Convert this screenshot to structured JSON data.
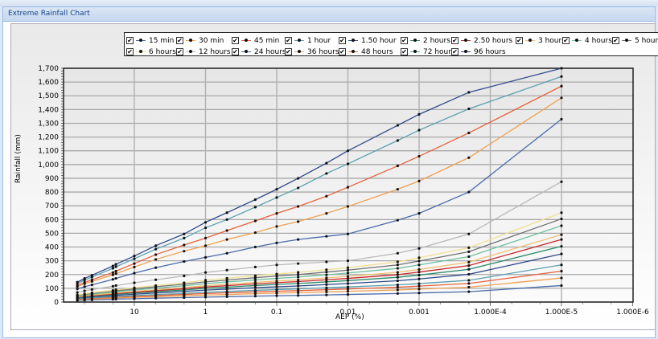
{
  "window": {
    "title": "Extreme Rainfall Chart"
  },
  "legend": {
    "rows": [
      [
        {
          "label": "15 min",
          "color": "#4a6aa8",
          "checked": true
        },
        {
          "label": "30 min",
          "color": "#f0a050",
          "checked": true
        },
        {
          "label": "45 min",
          "color": "#e8603a",
          "checked": true
        },
        {
          "label": "1 hour",
          "color": "#5aa0b0",
          "checked": true
        },
        {
          "label": "1.50 hour",
          "color": "#2e4a8a",
          "checked": true
        },
        {
          "label": "2 hours",
          "color": "#2a8a6a",
          "checked": true
        },
        {
          "label": "2.50 hours",
          "color": "#c8282a",
          "checked": true
        },
        {
          "label": "3 hours",
          "color": "#f0c070",
          "checked": true
        },
        {
          "label": "4 hours",
          "color": "#70c0a0",
          "checked": true
        },
        {
          "label": "5 hours",
          "color": "#707070",
          "checked": true
        }
      ],
      [
        {
          "label": "6 hours",
          "color": "#f0e090",
          "checked": true
        },
        {
          "label": "12 hours",
          "color": "#b8b8b8",
          "checked": true
        },
        {
          "label": "24 hours",
          "color": "#4a6aa8",
          "checked": true
        },
        {
          "label": "36 hours",
          "color": "#f0a050",
          "checked": true
        },
        {
          "label": "48 hours",
          "color": "#e8603a",
          "checked": true
        },
        {
          "label": "72 hours",
          "color": "#5aa0b0",
          "checked": true
        },
        {
          "label": "96 hours",
          "color": "#2e4a8a",
          "checked": true
        }
      ]
    ]
  },
  "chart_data": {
    "type": "line",
    "title": "Extreme Rainfall Chart",
    "xlabel": "AEP (%)",
    "ylabel": "Rainfall (mm)",
    "xscale": "log-reversed",
    "x_ticks": [
      "10",
      "1",
      "0.1",
      "0.01",
      "0.001",
      "1.000E-4",
      "1.000E-5",
      "1.000E-6"
    ],
    "y_ticks": [
      "0",
      "100",
      "200",
      "300",
      "400",
      "500",
      "600",
      "700",
      "800",
      "900",
      "1,000",
      "1,100",
      "1,200",
      "1,300",
      "1,400",
      "1,500",
      "1,600",
      "1,700"
    ],
    "ylim": [
      0,
      1700
    ],
    "grid": true,
    "legend_position": "top",
    "x": [
      63.2,
      50,
      39.35,
      20,
      18.13,
      10,
      5,
      2,
      1,
      0.5,
      0.2,
      0.1,
      0.05,
      0.02,
      0.01,
      0.002,
      0.001,
      0.0002,
      1e-05
    ],
    "series": [
      {
        "name": "15 min",
        "values": [
          12,
          14,
          16,
          20,
          21,
          24,
          28,
          32,
          36,
          39,
          43,
          46,
          48,
          52,
          55,
          62,
          66,
          75,
          120
        ]
      },
      {
        "name": "30 min",
        "values": [
          17,
          20,
          22,
          28,
          29,
          34,
          39,
          45,
          51,
          55,
          61,
          65,
          68,
          74,
          78,
          88,
          94,
          108,
          175
        ]
      },
      {
        "name": "45 min",
        "values": [
          21,
          24,
          27,
          34,
          35,
          41,
          47,
          55,
          62,
          67,
          74,
          79,
          83,
          90,
          95,
          108,
          116,
          135,
          225
        ]
      },
      {
        "name": "1 hour",
        "values": [
          24,
          28,
          31,
          39,
          40,
          47,
          54,
          63,
          71,
          77,
          85,
          91,
          95,
          104,
          110,
          125,
          134,
          158,
          270
        ]
      },
      {
        "name": "1.50 hour",
        "values": [
          29,
          34,
          38,
          47,
          49,
          57,
          66,
          77,
          87,
          94,
          104,
          111,
          117,
          127,
          135,
          155,
          168,
          202,
          350
        ]
      },
      {
        "name": "2 hours",
        "values": [
          33,
          39,
          43,
          54,
          56,
          66,
          76,
          88,
          100,
          108,
          120,
          128,
          135,
          147,
          156,
          180,
          196,
          238,
          405
        ]
      },
      {
        "name": "2.50 hours",
        "values": [
          36,
          43,
          47,
          59,
          62,
          72,
          83,
          97,
          110,
          119,
          132,
          141,
          149,
          162,
          172,
          199,
          218,
          265,
          455
        ]
      },
      {
        "name": "3 hours",
        "values": [
          39,
          46,
          51,
          64,
          67,
          78,
          90,
          105,
          119,
          129,
          143,
          153,
          161,
          176,
          187,
          216,
          237,
          290,
          490
        ]
      },
      {
        "name": "4 hours",
        "values": [
          44,
          52,
          57,
          72,
          75,
          88,
          101,
          118,
          134,
          146,
          161,
          172,
          182,
          198,
          211,
          245,
          270,
          330,
          555
        ]
      },
      {
        "name": "5 hours",
        "values": [
          48,
          57,
          63,
          79,
          82,
          96,
          111,
          130,
          147,
          160,
          177,
          189,
          200,
          218,
          232,
          270,
          298,
          366,
          605
        ]
      },
      {
        "name": "6 hours",
        "values": [
          52,
          61,
          68,
          85,
          89,
          104,
          120,
          140,
          159,
          173,
          191,
          204,
          216,
          235,
          250,
          292,
          322,
          395,
          650
        ]
      },
      {
        "name": "12 hours",
        "values": [
          70,
          82,
          91,
          115,
          120,
          140,
          162,
          190,
          215,
          232,
          255,
          270,
          280,
          292,
          300,
          355,
          390,
          495,
          875
        ]
      },
      {
        "name": "24 hours",
        "values": [
          95,
          112,
          125,
          165,
          172,
          210,
          250,
          295,
          325,
          355,
          400,
          430,
          455,
          478,
          495,
          595,
          645,
          800,
          1330
        ]
      },
      {
        "name": "36 hours",
        "values": [
          112,
          133,
          150,
          198,
          207,
          255,
          310,
          370,
          410,
          455,
          505,
          550,
          585,
          645,
          695,
          820,
          880,
          1050,
          1485
        ]
      },
      {
        "name": "48 hours",
        "values": [
          120,
          143,
          162,
          215,
          225,
          280,
          345,
          415,
          465,
          520,
          590,
          645,
          695,
          770,
          835,
          990,
          1060,
          1230,
          1570
        ]
      },
      {
        "name": "72 hours",
        "values": [
          135,
          160,
          182,
          245,
          257,
          315,
          385,
          465,
          540,
          600,
          690,
          760,
          830,
          935,
          1005,
          1175,
          1250,
          1405,
          1640
        ]
      },
      {
        "name": "96 hours",
        "values": [
          145,
          172,
          195,
          262,
          275,
          335,
          410,
          495,
          580,
          650,
          745,
          820,
          900,
          1010,
          1100,
          1285,
          1365,
          1525,
          1700
        ]
      }
    ]
  }
}
